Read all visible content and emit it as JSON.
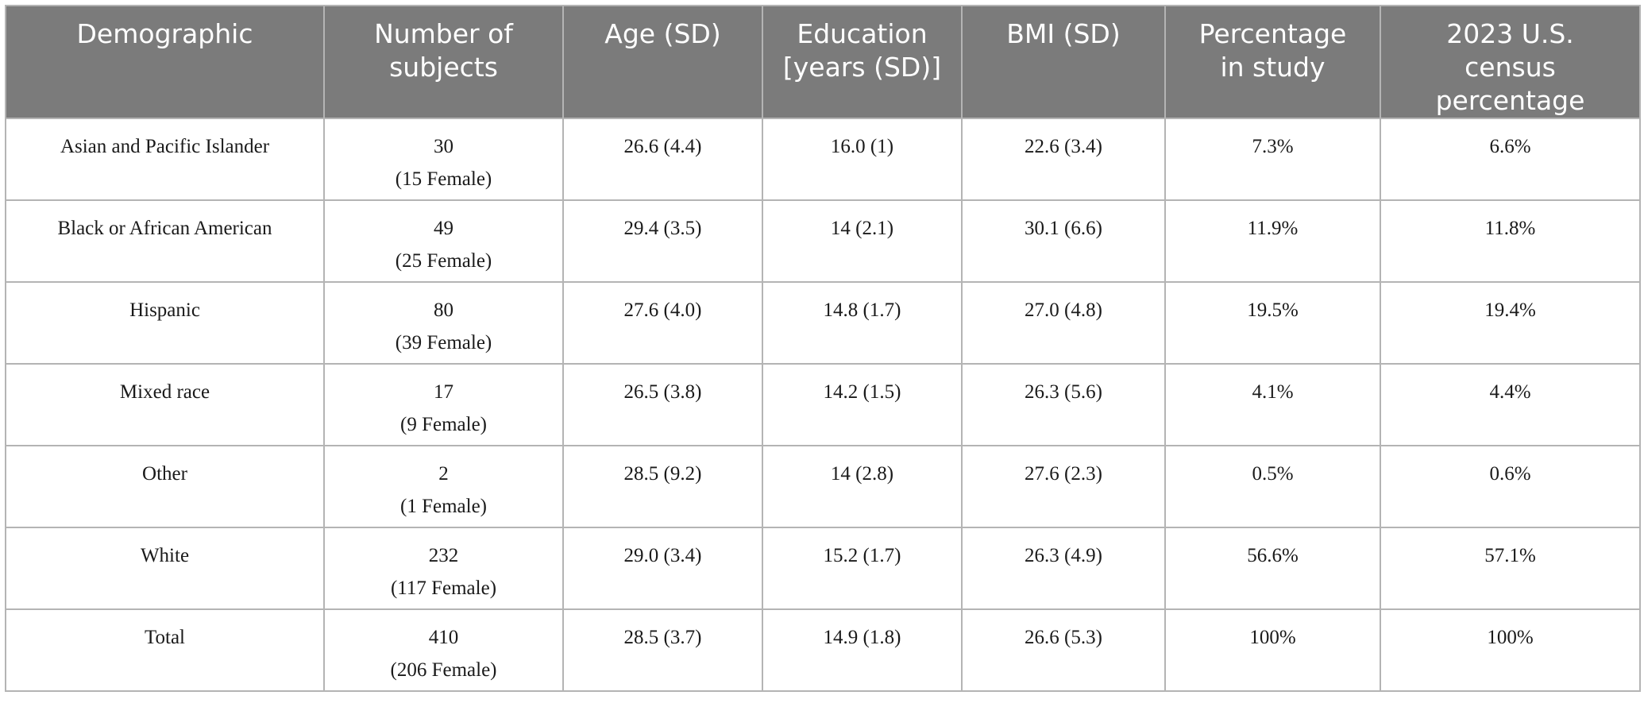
{
  "table": {
    "headers": [
      [
        "Demographic"
      ],
      [
        "Number of",
        "subjects"
      ],
      [
        "Age (SD)"
      ],
      [
        "Education",
        "[years (SD)]"
      ],
      [
        "BMI (SD)"
      ],
      [
        "Percentage",
        "in study"
      ],
      [
        "2023 U.S.",
        "census",
        "percentage"
      ]
    ],
    "rows": [
      {
        "demographic": "Asian and Pacific Islander",
        "subjects": "30",
        "female": "(15 Female)",
        "age": "26.6 (4.4)",
        "education": "16.0 (1)",
        "bmi": "22.6 (3.4)",
        "pct_study": "7.3%",
        "pct_census": "6.6%"
      },
      {
        "demographic": "Black or African American",
        "subjects": "49",
        "female": "(25 Female)",
        "age": "29.4 (3.5)",
        "education": "14 (2.1)",
        "bmi": "30.1 (6.6)",
        "pct_study": "11.9%",
        "pct_census": "11.8%"
      },
      {
        "demographic": "Hispanic",
        "subjects": "80",
        "female": "(39 Female)",
        "age": "27.6 (4.0)",
        "education": "14.8 (1.7)",
        "bmi": "27.0 (4.8)",
        "pct_study": "19.5%",
        "pct_census": "19.4%"
      },
      {
        "demographic": "Mixed race",
        "subjects": "17",
        "female": "(9 Female)",
        "age": "26.5 (3.8)",
        "education": "14.2 (1.5)",
        "bmi": "26.3 (5.6)",
        "pct_study": "4.1%",
        "pct_census": "4.4%"
      },
      {
        "demographic": "Other",
        "subjects": "2",
        "female": "(1 Female)",
        "age": "28.5 (9.2)",
        "education": "14 (2.8)",
        "bmi": "27.6 (2.3)",
        "pct_study": "0.5%",
        "pct_census": "0.6%"
      },
      {
        "demographic": "White",
        "subjects": "232",
        "female": "(117 Female)",
        "age": "29.0 (3.4)",
        "education": "15.2 (1.7)",
        "bmi": "26.3 (4.9)",
        "pct_study": "56.6%",
        "pct_census": "57.1%"
      },
      {
        "demographic": "Total",
        "subjects": "410",
        "female": "(206 Female)",
        "age": "28.5 (3.7)",
        "education": "14.9 (1.8)",
        "bmi": "26.6 (5.3)",
        "pct_study": "100%",
        "pct_census": "100%"
      }
    ]
  },
  "colors": {
    "header_bg": "#7b7b7b",
    "header_text": "#ffffff",
    "border": "#b4b4b4",
    "body_text": "#1a1a1a"
  }
}
